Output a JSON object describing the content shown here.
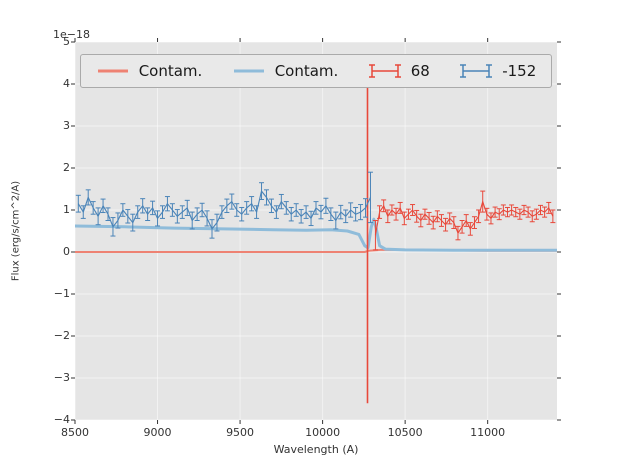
{
  "figure": {
    "offset_label": "1e−18"
  },
  "axes": {
    "xlabel": "Wavelength (A)",
    "ylabel": "Flux (erg/s/cm^2/A)",
    "xlim": [
      8500,
      11420
    ],
    "ylim": [
      -4,
      5
    ],
    "xticks": [
      8500,
      9000,
      9500,
      10000,
      10500,
      11000
    ],
    "xtick_labels": [
      "8500",
      "9000",
      "9500",
      "10000",
      "10500",
      "11000"
    ],
    "yticks": [
      -4,
      -3,
      -2,
      -1,
      0,
      1,
      2,
      3,
      4,
      5
    ],
    "ytick_labels": [
      "−4",
      "−3",
      "−2",
      "−1",
      "0",
      "1",
      "2",
      "3",
      "4",
      "5"
    ],
    "background": "#e5e5e5",
    "grid": "faint-white"
  },
  "legend": {
    "position": "upper center, inside axes, single row",
    "entries": [
      {
        "label": "Contam.",
        "type": "line",
        "color": "#ee8273"
      },
      {
        "label": "Contam.",
        "type": "line",
        "color": "#8fbcda"
      },
      {
        "label": "68",
        "type": "errorbar",
        "color": "#e8483a"
      },
      {
        "label": "-152",
        "type": "errorbar",
        "color": "#4a84b8"
      }
    ]
  },
  "chart_data": {
    "type": "line",
    "title": "",
    "xlabel": "Wavelength (A)",
    "ylabel": "Flux (erg/s/cm^2/A)",
    "y_scale_factor": "1e−18",
    "xlim": [
      8500,
      11420
    ],
    "ylim": [
      -4,
      5
    ],
    "lines": [
      {
        "name": "contam-red-line",
        "label": "Contam.",
        "color": "#ee8273",
        "width": 2,
        "points": [
          [
            8500,
            0.0
          ],
          [
            10255,
            0.0
          ],
          [
            10280,
            0.03
          ],
          [
            10350,
            0.05
          ],
          [
            10700,
            0.04
          ],
          [
            11000,
            0.03
          ],
          [
            11420,
            0.03
          ]
        ]
      },
      {
        "name": "contam-blue-line",
        "label": "Contam.",
        "color": "#8fbcda",
        "width": 3,
        "points": [
          [
            8500,
            0.62
          ],
          [
            8800,
            0.6
          ],
          [
            9100,
            0.57
          ],
          [
            9400,
            0.55
          ],
          [
            9700,
            0.53
          ],
          [
            9900,
            0.52
          ],
          [
            10050,
            0.53
          ],
          [
            10150,
            0.5
          ],
          [
            10220,
            0.42
          ],
          [
            10255,
            0.15
          ],
          [
            10275,
            0.1
          ],
          [
            10295,
            0.6
          ],
          [
            10310,
            0.78
          ],
          [
            10325,
            0.55
          ],
          [
            10345,
            0.15
          ],
          [
            10380,
            0.07
          ],
          [
            10500,
            0.05
          ],
          [
            10800,
            0.04
          ],
          [
            11100,
            0.04
          ],
          [
            11420,
            0.04
          ]
        ]
      }
    ],
    "spike": {
      "x": 10272,
      "y_min": -3.6,
      "y_max": 4.05,
      "color": "#e8483a"
    },
    "errorbar_series": [
      {
        "name": "-152",
        "color": "#4a84b8",
        "x": [
          8520,
          8550,
          8580,
          8610,
          8640,
          8670,
          8700,
          8730,
          8760,
          8790,
          8820,
          8850,
          8880,
          8910,
          8940,
          8970,
          9000,
          9030,
          9060,
          9090,
          9120,
          9150,
          9180,
          9210,
          9240,
          9270,
          9300,
          9330,
          9360,
          9390,
          9420,
          9450,
          9480,
          9510,
          9540,
          9570,
          9600,
          9630,
          9660,
          9690,
          9720,
          9750,
          9780,
          9810,
          9840,
          9870,
          9900,
          9930,
          9960,
          9990,
          10020,
          10050,
          10080,
          10110,
          10140,
          10170,
          10200,
          10230,
          10260,
          10290
        ],
        "y": [
          1.15,
          0.95,
          1.3,
          1.05,
          0.85,
          1.1,
          0.9,
          0.6,
          0.75,
          1.0,
          0.85,
          0.7,
          0.95,
          1.1,
          0.9,
          1.05,
          0.8,
          0.95,
          1.15,
          1.0,
          0.85,
          0.95,
          1.05,
          0.75,
          0.9,
          1.0,
          0.8,
          0.55,
          0.7,
          0.95,
          1.1,
          1.2,
          1.0,
          0.9,
          1.05,
          1.15,
          0.95,
          1.45,
          1.3,
          1.1,
          0.95,
          1.2,
          1.05,
          0.9,
          1.0,
          0.85,
          0.95,
          0.8,
          1.05,
          0.95,
          1.1,
          0.9,
          0.75,
          0.95,
          0.85,
          1.0,
          0.9,
          0.95,
          1.05,
          1.3
        ],
        "yerr": [
          0.2,
          0.15,
          0.18,
          0.15,
          0.2,
          0.16,
          0.15,
          0.22,
          0.18,
          0.15,
          0.16,
          0.2,
          0.15,
          0.17,
          0.15,
          0.16,
          0.18,
          0.15,
          0.17,
          0.15,
          0.16,
          0.15,
          0.18,
          0.2,
          0.15,
          0.16,
          0.18,
          0.22,
          0.2,
          0.15,
          0.16,
          0.18,
          0.15,
          0.16,
          0.15,
          0.17,
          0.15,
          0.2,
          0.18,
          0.16,
          0.15,
          0.17,
          0.15,
          0.16,
          0.15,
          0.16,
          0.15,
          0.17,
          0.15,
          0.16,
          0.18,
          0.15,
          0.2,
          0.16,
          0.15,
          0.17,
          0.16,
          0.18,
          0.22,
          0.6
        ]
      },
      {
        "name": "68",
        "color": "#e8483a",
        "x": [
          10320,
          10345,
          10370,
          10395,
          10420,
          10445,
          10470,
          10495,
          10520,
          10545,
          10570,
          10595,
          10620,
          10645,
          10670,
          10695,
          10720,
          10745,
          10770,
          10795,
          10820,
          10845,
          10870,
          10895,
          10920,
          10945,
          10970,
          10995,
          11020,
          11045,
          11070,
          11095,
          11120,
          11145,
          11170,
          11195,
          11220,
          11245,
          11270,
          11295,
          11320,
          11345,
          11370,
          11395
        ],
        "y": [
          0.4,
          0.95,
          1.1,
          0.85,
          1.0,
          0.9,
          1.05,
          0.8,
          0.9,
          1.0,
          0.85,
          0.75,
          0.9,
          0.8,
          0.7,
          0.85,
          0.75,
          0.65,
          0.8,
          0.7,
          0.45,
          0.6,
          0.75,
          0.55,
          0.7,
          0.85,
          1.2,
          0.9,
          0.8,
          0.95,
          0.9,
          1.0,
          0.95,
          1.0,
          0.95,
          0.9,
          1.0,
          0.95,
          0.85,
          0.9,
          1.0,
          0.95,
          1.05,
          0.85
        ],
        "yerr": [
          0.35,
          0.15,
          0.14,
          0.15,
          0.12,
          0.14,
          0.13,
          0.15,
          0.12,
          0.13,
          0.14,
          0.15,
          0.12,
          0.14,
          0.15,
          0.13,
          0.14,
          0.15,
          0.13,
          0.14,
          0.16,
          0.15,
          0.14,
          0.15,
          0.14,
          0.15,
          0.25,
          0.14,
          0.13,
          0.12,
          0.13,
          0.12,
          0.11,
          0.12,
          0.11,
          0.12,
          0.11,
          0.12,
          0.13,
          0.12,
          0.11,
          0.12,
          0.13,
          0.15
        ]
      }
    ]
  }
}
